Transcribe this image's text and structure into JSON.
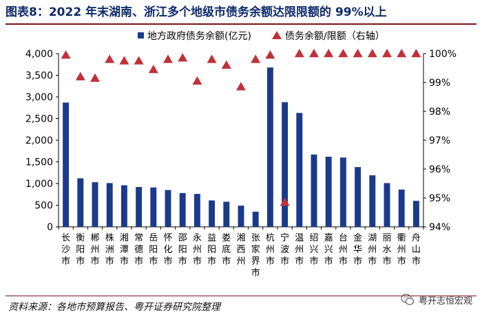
{
  "title": "图表8：2022 年末湖南、浙江多个地级市债务余额达限限额的 99%以上",
  "source": "资料来源：各地市预算报告、粤开证券研究院整理",
  "watermark": "粤开志恒宏观",
  "colors": {
    "bar": "#1b3a8c",
    "marker": "#c0313a",
    "axis": "#000000",
    "title": "#0d2a6b",
    "rule": "#7a1416"
  },
  "chart_data": {
    "type": "bar",
    "legend_position": "top",
    "grid": false,
    "categories": [
      "长沙市",
      "衡阳市",
      "郴州市",
      "株洲市",
      "湘潭市",
      "常德市",
      "岳阳市",
      "怀化市",
      "邵阳市",
      "永州市",
      "益阳市",
      "娄底市",
      "湘西州",
      "张家界市",
      "杭州市",
      "宁波市",
      "温州市",
      "绍兴市",
      "嘉兴市",
      "台州市",
      "金华市",
      "湖州市",
      "丽水市",
      "衢州市",
      "舟山市"
    ],
    "series": [
      {
        "name": "地方政府债务余额(亿元)",
        "type": "bar",
        "axis": "left",
        "values": [
          2870,
          1120,
          1030,
          1010,
          960,
          920,
          910,
          850,
          780,
          760,
          610,
          580,
          490,
          350,
          3680,
          2880,
          2630,
          1670,
          1620,
          1600,
          1380,
          1190,
          1010,
          860,
          600
        ]
      },
      {
        "name": "债务余额/限额（右轴）",
        "type": "scatter",
        "axis": "right",
        "marker": "triangle",
        "values": [
          99.95,
          99.2,
          99.15,
          99.8,
          99.75,
          99.75,
          99.45,
          99.8,
          99.85,
          99.05,
          99.8,
          99.6,
          98.85,
          99.8,
          99.95,
          94.85,
          100,
          100,
          100,
          100,
          100,
          100,
          100,
          100,
          100
        ]
      }
    ],
    "y_left": {
      "min": 0,
      "max": 4000,
      "ticks": [
        "0",
        "500",
        "1,000",
        "1,500",
        "2,000",
        "2,500",
        "3,000",
        "3,500",
        "4,000"
      ],
      "tick_values": [
        0,
        500,
        1000,
        1500,
        2000,
        2500,
        3000,
        3500,
        4000
      ]
    },
    "y_right": {
      "min": 94,
      "max": 100,
      "ticks": [
        "94%",
        "95%",
        "96%",
        "97%",
        "98%",
        "99%",
        "100%"
      ],
      "tick_values": [
        94,
        95,
        96,
        97,
        98,
        99,
        100
      ]
    }
  }
}
